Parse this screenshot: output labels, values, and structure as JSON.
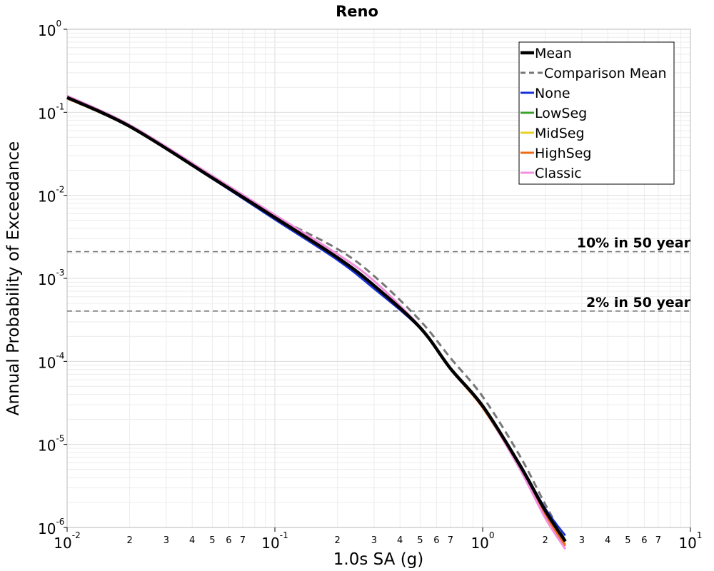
{
  "chart_data": {
    "type": "line",
    "title": "Reno",
    "xlabel": "1.0s SA (g)",
    "ylabel": "Annual Probability of Exceedance",
    "xscale": "log",
    "yscale": "log",
    "xlim": [
      0.01,
      10
    ],
    "ylim": [
      1e-06,
      1
    ],
    "grid": true,
    "legend_position": "top-right",
    "x_major_ticks": [
      {
        "value": 0.01,
        "base": "10",
        "exp": "-2"
      },
      {
        "value": 0.1,
        "base": "10",
        "exp": "-1"
      },
      {
        "value": 1,
        "base": "10",
        "exp": "0"
      },
      {
        "value": 10,
        "base": "10",
        "exp": "1"
      }
    ],
    "x_minor_labels": [
      "2",
      "3",
      "4",
      "5",
      "6",
      "7"
    ],
    "y_major_ticks": [
      {
        "value": 1,
        "base": "10",
        "exp": "0"
      },
      {
        "value": 0.1,
        "base": "10",
        "exp": "-1"
      },
      {
        "value": 0.01,
        "base": "10",
        "exp": "-2"
      },
      {
        "value": 0.001,
        "base": "10",
        "exp": "-3"
      },
      {
        "value": 0.0001,
        "base": "10",
        "exp": "-4"
      },
      {
        "value": 1e-05,
        "base": "10",
        "exp": "-5"
      },
      {
        "value": 1e-06,
        "base": "10",
        "exp": "-6"
      }
    ],
    "reference_lines": [
      {
        "label": "10% in 50 year",
        "y": 0.0021
      },
      {
        "label": "2% in 50 year",
        "y": 0.000404
      }
    ],
    "series": [
      {
        "name": "Comparison Mean",
        "color": "#777777",
        "dashed": true,
        "x": [
          0.01,
          0.02,
          0.05,
          0.1,
          0.2,
          0.3,
          0.5,
          0.7,
          1.0,
          1.5,
          2.0,
          2.5
        ],
        "y": [
          0.147,
          0.0667,
          0.0167,
          0.00563,
          0.00226,
          0.00107,
          0.00031,
          0.00011,
          3.77e-05,
          7.5e-06,
          1.9e-06,
          7e-07
        ]
      },
      {
        "name": "None",
        "color": "#1530d8",
        "dashed": false,
        "x": [
          0.01,
          0.02,
          0.05,
          0.1,
          0.2,
          0.3,
          0.5,
          0.7,
          1.0,
          1.5,
          2.0,
          2.5
        ],
        "y": [
          0.147,
          0.0667,
          0.0158,
          0.0051,
          0.00166,
          0.00075,
          0.00025,
          8.4e-05,
          2.96e-05,
          6e-06,
          1.7e-06,
          8e-07
        ]
      },
      {
        "name": "LowSeg",
        "color": "#3ca02c",
        "dashed": false,
        "x": [
          0.01,
          0.02,
          0.05,
          0.1,
          0.2,
          0.3,
          0.5,
          0.7,
          1.0,
          1.5,
          2.0,
          2.5
        ],
        "y": [
          0.147,
          0.0667,
          0.016,
          0.0053,
          0.00175,
          0.00082,
          0.000255,
          8.2e-05,
          2.85e-05,
          5.6e-06,
          1.5e-06,
          6.3e-07
        ]
      },
      {
        "name": "MidSeg",
        "color": "#e8d020",
        "dashed": false,
        "x": [
          0.01,
          0.02,
          0.05,
          0.1,
          0.2,
          0.3,
          0.5,
          0.7,
          1.0,
          1.5,
          2.0,
          2.5
        ],
        "y": [
          0.147,
          0.0667,
          0.016,
          0.0053,
          0.00175,
          0.00082,
          0.000255,
          8.1e-05,
          2.8e-05,
          5.5e-06,
          1.5e-06,
          6.2e-07
        ]
      },
      {
        "name": "HighSeg",
        "color": "#f06a12",
        "dashed": false,
        "x": [
          0.01,
          0.02,
          0.05,
          0.1,
          0.2,
          0.3,
          0.5,
          0.7,
          1.0,
          1.5,
          2.0,
          2.5
        ],
        "y": [
          0.147,
          0.0667,
          0.016,
          0.0053,
          0.00175,
          0.00082,
          0.00025,
          8e-05,
          2.75e-05,
          5.3e-06,
          1.4e-06,
          6e-07
        ]
      },
      {
        "name": "Classic",
        "color": "#f48ee0",
        "dashed": false,
        "x": [
          0.01,
          0.02,
          0.05,
          0.1,
          0.2,
          0.3,
          0.5,
          0.7,
          1.0,
          1.5,
          2.0,
          2.5
        ],
        "y": [
          0.158,
          0.0706,
          0.0172,
          0.0058,
          0.00196,
          0.00093,
          0.00026,
          8.2e-05,
          2.85e-05,
          5.2e-06,
          1.3e-06,
          5.5e-07
        ]
      },
      {
        "name": "Mean",
        "color": "#000000",
        "dashed": false,
        "x": [
          0.01,
          0.02,
          0.05,
          0.1,
          0.2,
          0.3,
          0.5,
          0.7,
          1.0,
          1.5,
          2.0,
          2.5
        ],
        "y": [
          0.151,
          0.0677,
          0.0162,
          0.0054,
          0.00178,
          0.00082,
          0.000255,
          8.2e-05,
          2.9e-05,
          5.8e-06,
          1.6e-06,
          6.8e-07
        ]
      }
    ],
    "legend_order": [
      "Mean",
      "Comparison Mean",
      "None",
      "LowSeg",
      "MidSeg",
      "HighSeg",
      "Classic"
    ]
  }
}
